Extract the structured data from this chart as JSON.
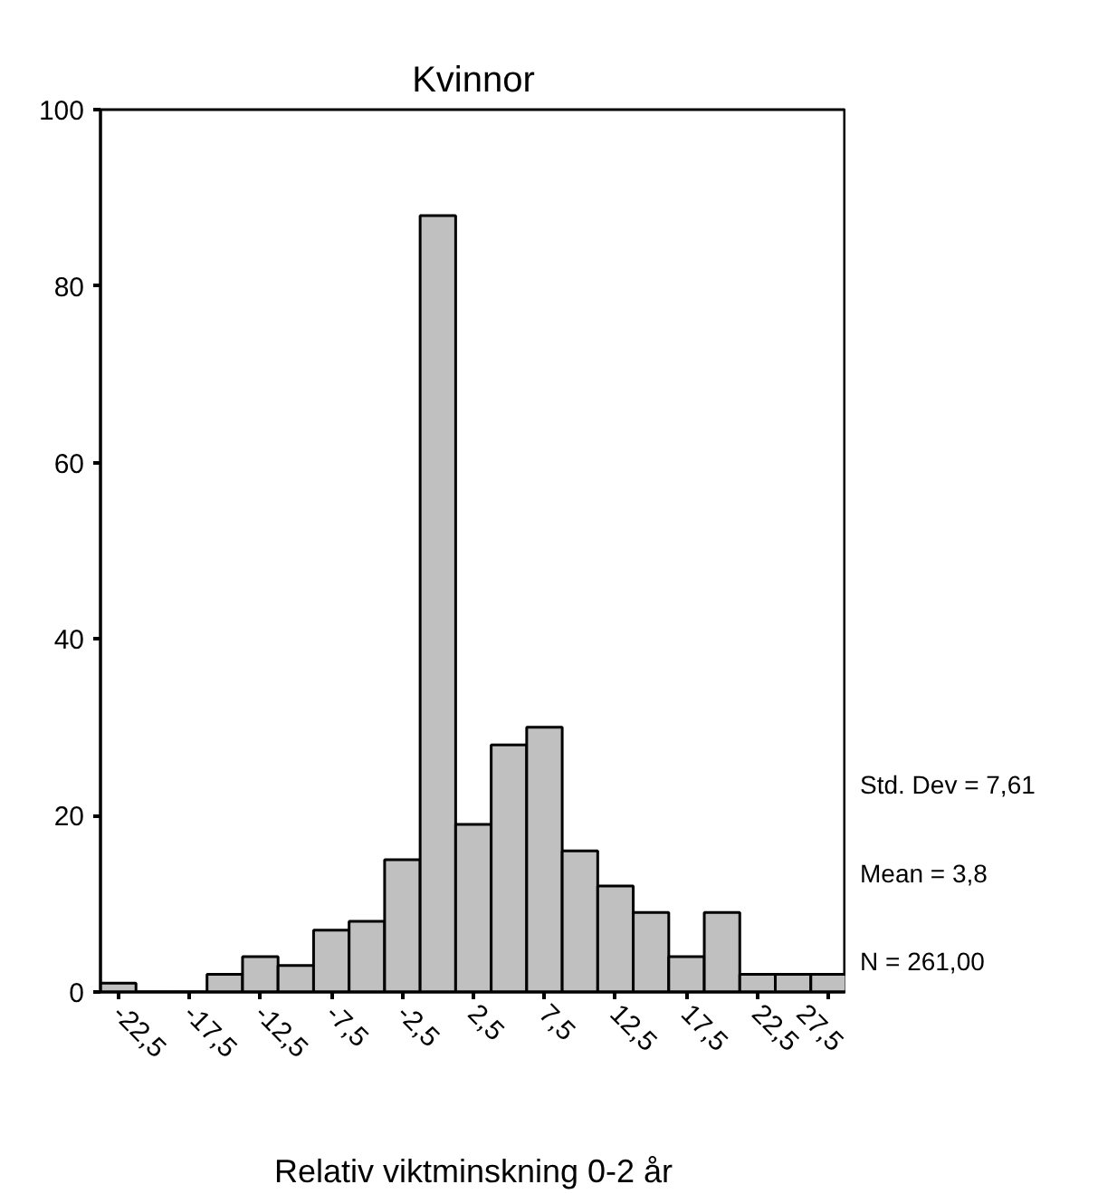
{
  "chart_data": {
    "type": "histogram",
    "title": "Kvinnor",
    "xlabel": "Relativ viktminskning 0-2 år",
    "bins": [
      -23.75,
      -21.25,
      -18.75,
      -16.25,
      -13.75,
      -11.25,
      -8.75,
      -6.25,
      -3.75,
      -1.25,
      1.25,
      3.75,
      6.25,
      8.75,
      11.25,
      13.75,
      16.25,
      18.75,
      21.25,
      23.75,
      26.25,
      28.75
    ],
    "values": [
      1,
      0,
      0,
      2,
      4,
      3,
      7,
      8,
      15,
      88,
      19,
      28,
      30,
      16,
      12,
      9,
      4,
      9,
      2,
      2,
      2
    ],
    "color": "#c0c0c0",
    "xlim": [
      -23.75,
      28.75
    ],
    "xticks": [
      {
        "value": -22.5,
        "label": "-22,5"
      },
      {
        "value": -17.5,
        "label": "-17,5"
      },
      {
        "value": -12.5,
        "label": "-12,5"
      },
      {
        "value": -7.5,
        "label": "-7,5"
      },
      {
        "value": -2.5,
        "label": "-2,5"
      },
      {
        "value": 2.5,
        "label": "2,5"
      },
      {
        "value": 7.5,
        "label": "7,5"
      },
      {
        "value": 12.5,
        "label": "12,5"
      },
      {
        "value": 17.5,
        "label": "17,5"
      },
      {
        "value": 22.5,
        "label": "22,5"
      },
      {
        "value": 27.5,
        "label": "27,5"
      }
    ],
    "ylim": [
      0,
      100
    ],
    "yticks": [
      0,
      20,
      40,
      60,
      80,
      100
    ],
    "grid": false,
    "annotations": [
      "Std. Dev = 7,61",
      "Mean = 3,8",
      "N = 261,00"
    ]
  }
}
